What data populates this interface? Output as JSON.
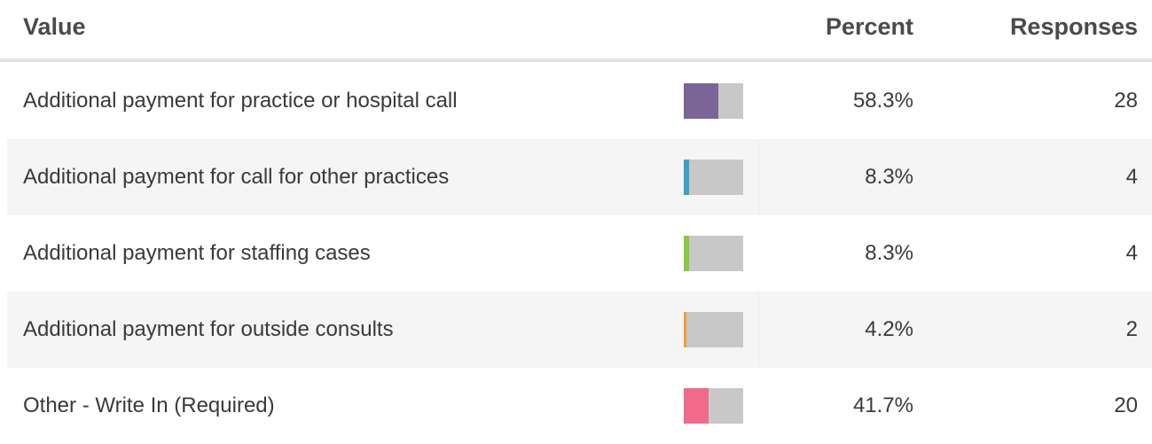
{
  "header": {
    "value": "Value",
    "percent": "Percent",
    "responses": "Responses"
  },
  "table": {
    "rows": [
      {
        "value": "Additional payment for practice or hospital call",
        "percent": 58.3,
        "percent_label": "58.3%",
        "responses": 28,
        "color": "#7b6496"
      },
      {
        "value": "Additional payment for call for other practices",
        "percent": 8.3,
        "percent_label": "8.3%",
        "responses": 4,
        "color": "#3aa0c8"
      },
      {
        "value": "Additional payment for staffing cases",
        "percent": 8.3,
        "percent_label": "8.3%",
        "responses": 4,
        "color": "#8dc63f"
      },
      {
        "value": "Additional payment for outside consults",
        "percent": 4.2,
        "percent_label": "4.2%",
        "responses": 2,
        "color": "#f0a030"
      },
      {
        "value": "Other - Write In (Required)",
        "percent": 41.7,
        "percent_label": "41.7%",
        "responses": 20,
        "color": "#f06a8a"
      }
    ]
  }
}
